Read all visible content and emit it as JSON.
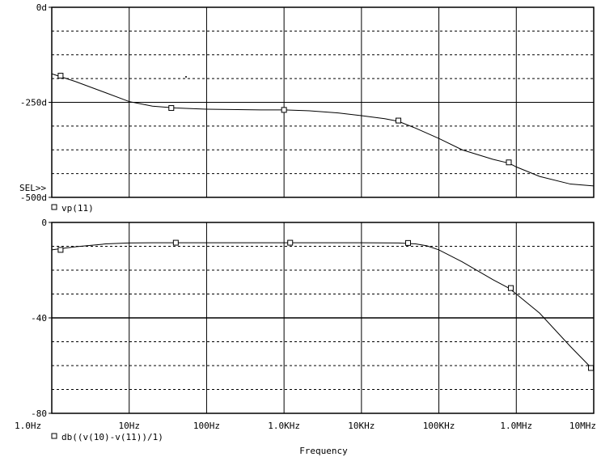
{
  "xaxis": {
    "label": "Frequency",
    "tick_labels": [
      "1.0Hz",
      "10Hz",
      "100Hz",
      "1.0KHz",
      "10KHz",
      "100KHz",
      "1.0MHz",
      "10MHz"
    ]
  },
  "colors": {
    "line": "#000000",
    "grid": "#000000",
    "background": "#ffffff"
  },
  "chart_data": [
    {
      "type": "line",
      "x_scale": "log",
      "xlim": [
        1,
        10000000
      ],
      "ylim": [
        -500,
        0
      ],
      "ytick_labels": [
        "0d",
        "-250d",
        "-500d"
      ],
      "sel_marker": "SEL>>",
      "grid": true,
      "series": [
        {
          "name": "vp(11)",
          "marker": "square",
          "x": [
            1,
            2,
            5,
            10,
            20,
            40,
            100,
            200,
            500,
            1000,
            2000,
            5000,
            10000,
            20000,
            30000,
            50000,
            100000,
            200000,
            500000,
            800000,
            1000000,
            2000000,
            5000000,
            10000000
          ],
          "y": [
            -175,
            -195,
            -225,
            -248,
            -260,
            -265,
            -268,
            -269,
            -270,
            -270,
            -272,
            -278,
            -285,
            -293,
            -300,
            -318,
            -345,
            -375,
            -400,
            -410,
            -420,
            -445,
            -465,
            -470
          ],
          "marker_x": [
            1.3,
            35,
            1000,
            30000,
            800000
          ],
          "marker_y": [
            -180,
            -265,
            -270,
            -298,
            -408
          ]
        }
      ]
    },
    {
      "type": "line",
      "x_scale": "log",
      "xlim": [
        1,
        10000000
      ],
      "ylim": [
        -80,
        0
      ],
      "ytick_labels": [
        "0",
        "-40",
        "-80"
      ],
      "grid": true,
      "series": [
        {
          "name": "db((v(10)-v(11))/1)",
          "marker": "square",
          "x": [
            1,
            2,
            5,
            10,
            20,
            50,
            100,
            1000,
            10000,
            30000,
            50000,
            70000,
            100000,
            200000,
            500000,
            800000,
            1000000,
            2000000,
            5000000,
            10000000
          ],
          "y": [
            -11.5,
            -10.2,
            -9,
            -8.6,
            -8.5,
            -8.5,
            -8.5,
            -8.5,
            -8.5,
            -8.6,
            -9,
            -9.8,
            -11.5,
            -16.5,
            -24,
            -27.5,
            -30,
            -38,
            -52,
            -62
          ],
          "marker_x": [
            1.3,
            40,
            1200,
            40000,
            850000,
            9200000
          ],
          "marker_y": [
            -11.5,
            -8.5,
            -8.5,
            -8.6,
            -27.5,
            -61
          ]
        }
      ]
    }
  ]
}
